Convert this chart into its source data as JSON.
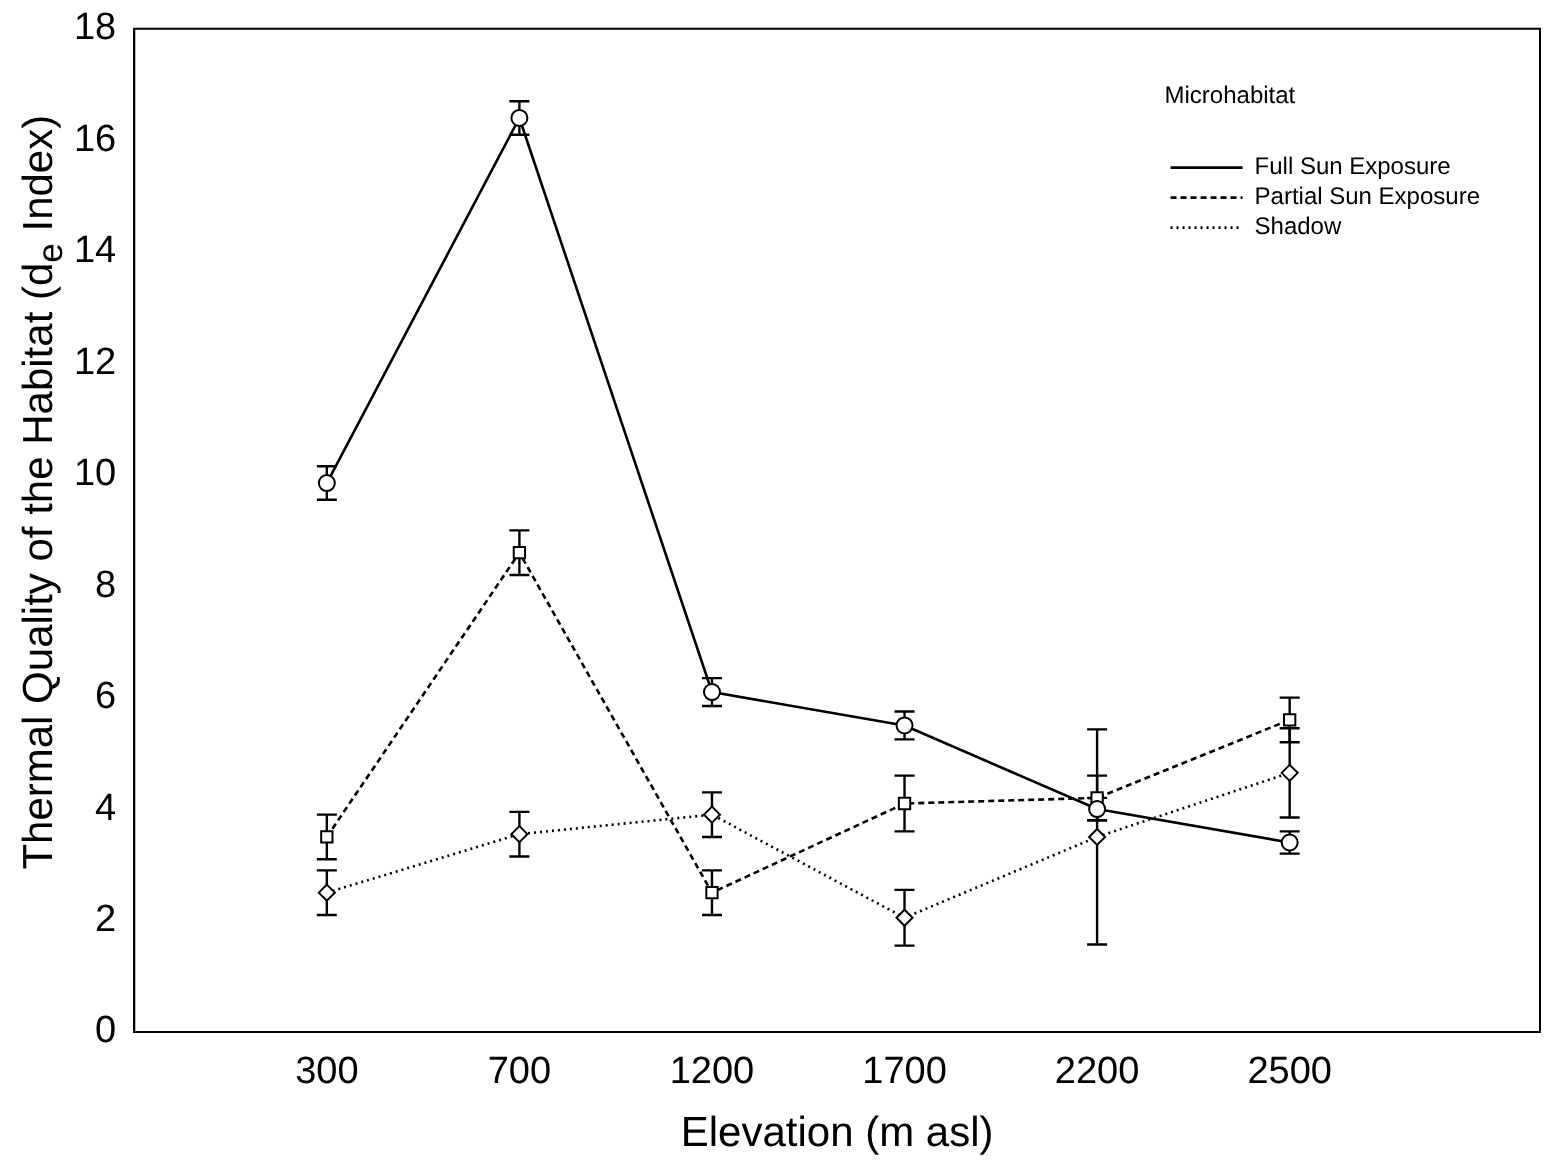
{
  "chart_data": {
    "type": "line",
    "xlabel": "Elevation (m asl)",
    "ylabel": "Thermal Quality of the Habitat (d$_{e}$ Index)",
    "legend_title": "Microhabitat",
    "categories": [
      "300",
      "700",
      "1200",
      "1700",
      "2200",
      "2500"
    ],
    "ylim": [
      0,
      18
    ],
    "yticks": [
      0,
      2,
      4,
      6,
      8,
      10,
      12,
      14,
      16,
      18
    ],
    "grid": false,
    "legend": "top right",
    "series": [
      {
        "name": "Full Sun Exposure",
        "color": "#000000",
        "marker": "circle",
        "line_style": "solid",
        "values": [
          9.85,
          16.4,
          6.1,
          5.5,
          4.0,
          3.4
        ],
        "errors": [
          0.3,
          0.3,
          0.25,
          0.25,
          0.2,
          0.2
        ]
      },
      {
        "name": "Partial Sun Exposure",
        "color": "#000000",
        "marker": "square",
        "line_style": "dashed",
        "values": [
          3.5,
          8.6,
          2.5,
          4.1,
          4.2,
          5.6
        ],
        "errors": [
          0.4,
          0.4,
          0.4,
          0.5,
          0.4,
          0.4
        ]
      },
      {
        "name": "Shadow",
        "color": "#000000",
        "marker": "diamond",
        "line_style": "dotted",
        "values": [
          2.5,
          3.55,
          3.9,
          2.05,
          3.5,
          4.65
        ],
        "errors": [
          0.4,
          0.4,
          0.4,
          0.5,
          1.93,
          0.8
        ]
      }
    ]
  }
}
